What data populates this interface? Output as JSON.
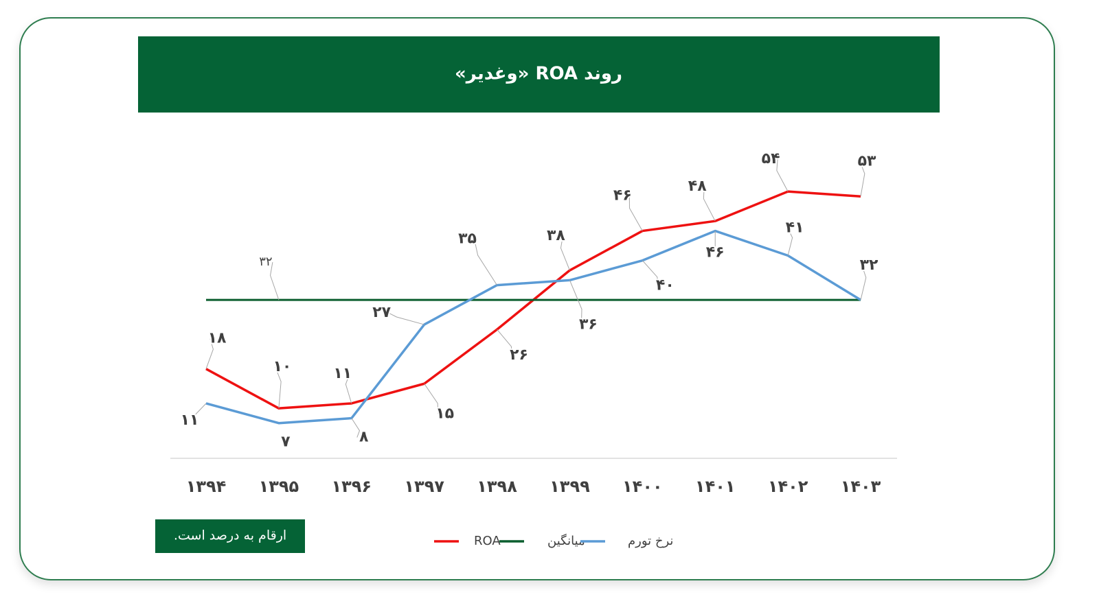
{
  "chart_data": {
    "type": "line",
    "title": "روند ROA «وغدیر»",
    "note": "ارقام به درصد است.",
    "categories": [
      "۱۳۹۴",
      "۱۳۹۵",
      "۱۳۹۶",
      "۱۳۹۷",
      "۱۳۹۸",
      "۱۳۹۹",
      "۱۴۰۰",
      "۱۴۰۱",
      "۱۴۰۲",
      "۱۴۰۳"
    ],
    "ylim": [
      0,
      60
    ],
    "series": [
      {
        "name": "ROA",
        "color": "#ee1111",
        "values": [
          18,
          10,
          11,
          15,
          26,
          38,
          46,
          48,
          54,
          53
        ],
        "value_labels": [
          "۱۸",
          "۱۰",
          "۱۱",
          "۱۵",
          "۲۶",
          "۳۸",
          "۴۶",
          "۴۸",
          "۵۴",
          "۵۳"
        ]
      },
      {
        "name": "میانگین",
        "color": "#0b5e2e",
        "values": [
          32,
          32,
          32,
          32,
          32,
          32,
          32,
          32,
          32,
          32
        ],
        "value_labels": [
          null,
          "۳۲",
          null,
          null,
          null,
          null,
          null,
          null,
          null,
          null
        ]
      },
      {
        "name": "نرخ تورم",
        "color": "#5b9bd5",
        "values": [
          11,
          7,
          8,
          27,
          35,
          36,
          40,
          46,
          41,
          32
        ],
        "value_labels": [
          "۱۱",
          "۷",
          "۸",
          "۲۷",
          "۳۵",
          "۳۶",
          "۴۰",
          "۴۶",
          "۴۱",
          "۳۲"
        ]
      }
    ]
  }
}
